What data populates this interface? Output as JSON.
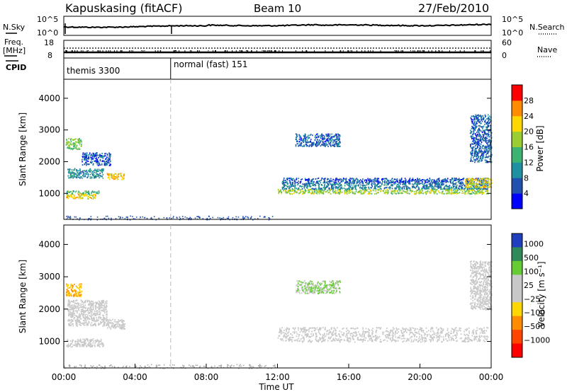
{
  "header": {
    "station": "Kapuskasing (fitACF)",
    "beam": "Beam 10",
    "date": "27/Feb/2010"
  },
  "noise_panel": {
    "left_label": "N.Sky",
    "right_label": "N.Search",
    "left_ticks": [
      "10^5",
      "10^0"
    ],
    "right_ticks": [
      "10^5",
      "10^0"
    ]
  },
  "freq_panel": {
    "left_label_1": "Freq.",
    "left_label_2": "[MHz]",
    "right_label": "Nave",
    "left_ticks": [
      "18",
      "8"
    ],
    "right_ticks": [
      "60",
      "0"
    ]
  },
  "cpid_panel": {
    "label": "CPID",
    "segments": [
      {
        "name": "themis 3300",
        "start_hour": 0,
        "end_hour": 6
      },
      {
        "name": "normal (fast) 151",
        "start_hour": 6,
        "end_hour": 24
      }
    ]
  },
  "x_axis": {
    "label": "Time UT",
    "ticks": [
      "00:00",
      "04:00",
      "08:00",
      "12:00",
      "16:00",
      "20:00",
      "00:00"
    ],
    "range_hours": [
      0,
      24
    ]
  },
  "power_colorbar": {
    "label": "Power [dB]",
    "ticks": [
      "4",
      "8",
      "12",
      "16",
      "20",
      "24",
      "28"
    ],
    "colors": [
      "#0000ff",
      "#2050b0",
      "#1e90a0",
      "#3cb371",
      "#9acd32",
      "#ffd700",
      "#ff8c00",
      "#ff0000"
    ]
  },
  "velocity_colorbar": {
    "label": "Velocity [m s⁻¹]",
    "ticks": [
      "1000",
      "500",
      "100",
      "25",
      "−25",
      "−100",
      "−500",
      "−1000"
    ],
    "colors": [
      "#1f3fbf",
      "#2e8b57",
      "#66cc33",
      "#c8c8c8",
      "#c8c8c8",
      "#ffd700",
      "#ff8c00",
      "#ff4500",
      "#ff0000"
    ]
  },
  "chart_data": [
    {
      "type": "heatmap",
      "title": "Power",
      "ylabel": "Slant Range [km]",
      "xlabel": "Time UT",
      "ylim": [
        180,
        4600
      ],
      "xlim": [
        0,
        24
      ],
      "yticks": [
        1000,
        2000,
        3000,
        4000
      ],
      "cbar_label": "Power [dB]",
      "regions": [
        {
          "t0": 0.1,
          "t1": 1.8,
          "r0": 850,
          "r1": 1000,
          "value": 22
        },
        {
          "t0": 0.1,
          "t1": 2.0,
          "r0": 1000,
          "r1": 1100,
          "value": 14
        },
        {
          "t0": 0.2,
          "t1": 2.2,
          "r0": 1500,
          "r1": 1800,
          "value": 10
        },
        {
          "t0": 0.1,
          "t1": 1.0,
          "r0": 2400,
          "r1": 2750,
          "value": 16
        },
        {
          "t0": 1.0,
          "t1": 2.6,
          "r0": 1900,
          "r1": 2300,
          "value": 6
        },
        {
          "t0": 2.4,
          "t1": 3.4,
          "r0": 1450,
          "r1": 1650,
          "value": 22
        },
        {
          "t0": 12.0,
          "t1": 23.8,
          "r0": 1000,
          "r1": 1150,
          "value": 18
        },
        {
          "t0": 12.2,
          "t1": 23.8,
          "r0": 1150,
          "r1": 1350,
          "value": 9
        },
        {
          "t0": 12.2,
          "t1": 23.8,
          "r0": 1350,
          "r1": 1500,
          "value": 6
        },
        {
          "t0": 22.5,
          "t1": 24.0,
          "r0": 1200,
          "r1": 1500,
          "value": 21
        },
        {
          "t0": 13.0,
          "t1": 15.5,
          "r0": 2500,
          "r1": 2900,
          "value": 7
        },
        {
          "t0": 22.8,
          "t1": 24.0,
          "r0": 2000,
          "r1": 3500,
          "value": 7
        }
      ]
    },
    {
      "type": "heatmap",
      "title": "Velocity",
      "ylabel": "Slant Range [km]",
      "xlabel": "Time UT",
      "ylim": [
        180,
        4600
      ],
      "xlim": [
        0,
        24
      ],
      "yticks": [
        1000,
        2000,
        3000,
        4000
      ],
      "cbar_label": "Velocity [m s⁻¹]",
      "regions": [
        {
          "t0": 0.1,
          "t1": 2.2,
          "r0": 850,
          "r1": 1100,
          "value": 0
        },
        {
          "t0": 0.2,
          "t1": 2.4,
          "r0": 1500,
          "r1": 2300,
          "value": 0
        },
        {
          "t0": 0.1,
          "t1": 1.0,
          "r0": 2400,
          "r1": 2800,
          "value": -100
        },
        {
          "t0": 2.4,
          "t1": 3.4,
          "r0": 1400,
          "r1": 1700,
          "value": 0
        },
        {
          "t0": 12.0,
          "t1": 23.8,
          "r0": 1000,
          "r1": 1450,
          "value": 0
        },
        {
          "t0": 13.0,
          "t1": 15.5,
          "r0": 2500,
          "r1": 2900,
          "value": 100
        },
        {
          "t0": 22.8,
          "t1": 24.0,
          "r0": 2000,
          "r1": 3500,
          "value": 0
        }
      ]
    }
  ]
}
